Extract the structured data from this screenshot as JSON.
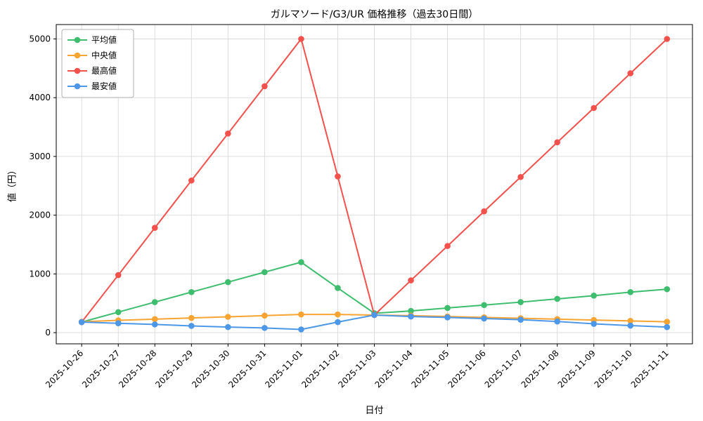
{
  "chart_data": {
    "type": "line",
    "title": "ガルマソード/G3/UR 価格推移（過去30日間）",
    "xlabel": "日付",
    "ylabel": "値（円）",
    "ylim": [
      0,
      5000
    ],
    "yticks": [
      0,
      1000,
      2000,
      3000,
      4000,
      5000
    ],
    "grid": true,
    "legend_position": "upper left",
    "categories": [
      "2025-10-26",
      "2025-10-27",
      "2025-10-28",
      "2025-10-29",
      "2025-10-30",
      "2025-10-31",
      "2025-11-01",
      "2025-11-02",
      "2025-11-03",
      "2025-11-04",
      "2025-11-05",
      "2025-11-06",
      "2025-11-07",
      "2025-11-08",
      "2025-11-09",
      "2025-11-10",
      "2025-11-11"
    ],
    "series": [
      {
        "name": "平均値",
        "color": "#3dbd6d",
        "values": [
          180,
          350,
          520,
          690,
          860,
          1030,
          1200,
          760,
          330,
          370,
          420,
          470,
          520,
          575,
          630,
          690,
          740
        ]
      },
      {
        "name": "中央値",
        "color": "#f7a433",
        "values": [
          185,
          210,
          230,
          250,
          270,
          290,
          310,
          310,
          300,
          290,
          275,
          260,
          245,
          230,
          215,
          200,
          185
        ]
      },
      {
        "name": "最高値",
        "color": "#f4504c",
        "values": [
          180,
          980,
          1785,
          2590,
          3390,
          4195,
          5000,
          2660,
          300,
          890,
          1475,
          2065,
          2650,
          3240,
          3825,
          4415,
          5000
        ]
      },
      {
        "name": "最安値",
        "color": "#4d97e8",
        "values": [
          180,
          160,
          140,
          115,
          95,
          80,
          55,
          180,
          300,
          275,
          260,
          240,
          220,
          190,
          150,
          120,
          95
        ]
      }
    ]
  }
}
